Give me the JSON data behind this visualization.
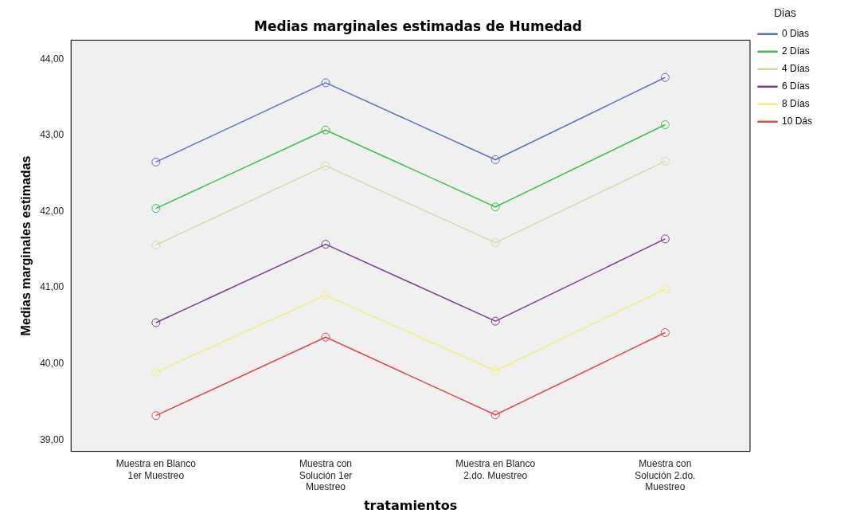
{
  "chart_data": {
    "type": "line",
    "title": "Medias marginales estimadas de Humedad",
    "xlabel": "tratamientos",
    "ylabel": "Medias marginales estimadas",
    "legend_title": "Dias",
    "categories": [
      "Muestra en Blanco 1er Muestreo",
      "Muestra con Solución 1er Muestreo",
      "Muestra en Blanco 2.do. Muestreo",
      "Muestra con Solución 2.do. Muestreo"
    ],
    "series": [
      {
        "name": "0 Dias",
        "color": "#5b6fbf",
        "values": [
          42.65,
          43.69,
          42.68,
          43.76
        ]
      },
      {
        "name": "2 Días",
        "color": "#3cbf4a",
        "values": [
          42.04,
          43.07,
          42.06,
          43.14
        ]
      },
      {
        "name": "4 Días",
        "color": "#d9d4a8",
        "values": [
          41.56,
          42.6,
          41.59,
          42.66
        ]
      },
      {
        "name": "6 Días",
        "color": "#7a3b8f",
        "values": [
          40.54,
          41.57,
          40.56,
          41.64
        ]
      },
      {
        "name": "8 Días",
        "color": "#f2ee78",
        "values": [
          39.89,
          40.9,
          39.91,
          40.98
        ]
      },
      {
        "name": "10 Dás",
        "color": "#e0474c",
        "values": [
          39.32,
          40.35,
          39.33,
          40.41
        ]
      }
    ],
    "ylim": [
      38.85,
      44.25
    ],
    "yticks": [
      {
        "value": 39,
        "label": "39,00"
      },
      {
        "value": 40,
        "label": "40,00"
      },
      {
        "value": 41,
        "label": "41,00"
      },
      {
        "value": 42,
        "label": "42,00"
      },
      {
        "value": 43,
        "label": "43,00"
      },
      {
        "value": 44,
        "label": "44,00"
      }
    ],
    "grid": false,
    "legend": "right",
    "marker": "circle",
    "line_style": "solid"
  }
}
